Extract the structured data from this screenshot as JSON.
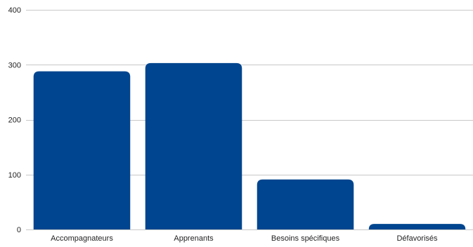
{
  "chart_data": {
    "type": "bar",
    "categories": [
      "Accompagnateurs",
      "Apprenants",
      "Besoins spécifiques",
      "Défavorisés"
    ],
    "values": [
      288,
      303,
      91,
      10
    ],
    "ylim": [
      0,
      400
    ],
    "yticks": [
      0,
      100,
      200,
      300,
      400
    ],
    "grid": true,
    "legend": "none",
    "bar_color": "#00458f"
  }
}
